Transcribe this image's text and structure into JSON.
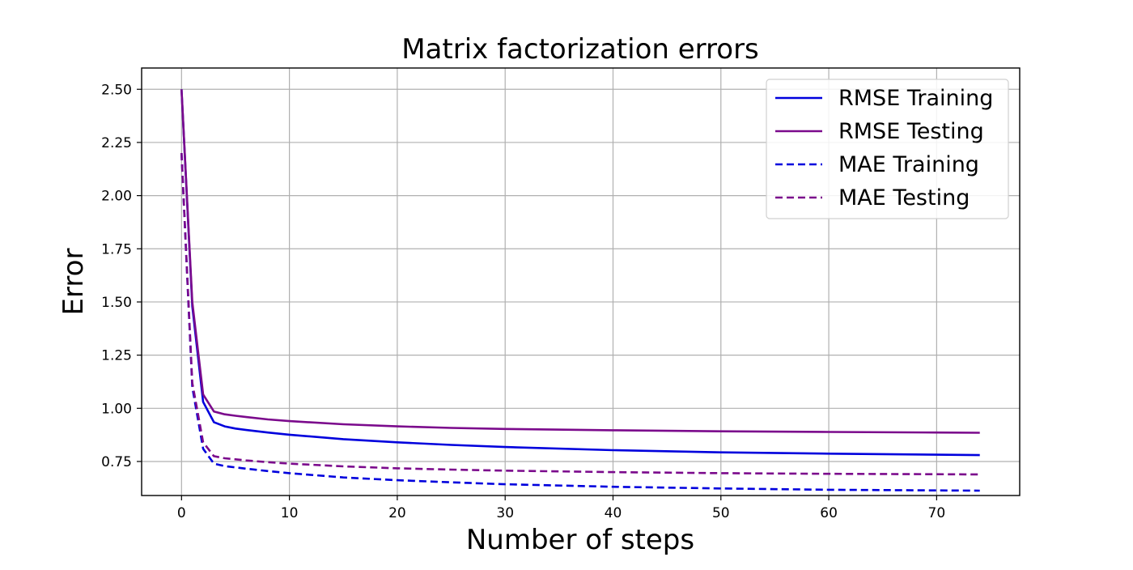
{
  "chart_data": {
    "type": "line",
    "title": "Matrix factorization errors",
    "xlabel": "Number of steps",
    "ylabel": "Error",
    "xlim": [
      -3.7,
      77.7
    ],
    "ylim": [
      0.59,
      2.6
    ],
    "xticks": [
      0,
      10,
      20,
      30,
      40,
      50,
      60,
      70
    ],
    "xtick_labels": [
      "0",
      "10",
      "20",
      "30",
      "40",
      "50",
      "60",
      "70"
    ],
    "yticks": [
      0.75,
      1.0,
      1.25,
      1.5,
      1.75,
      2.0,
      2.25,
      2.5
    ],
    "ytick_labels": [
      "0.75",
      "1.00",
      "1.25",
      "1.50",
      "1.75",
      "2.00",
      "2.25",
      "2.50"
    ],
    "grid": true,
    "legend_position": "upper-right",
    "series": [
      {
        "name": "RMSE Training",
        "color": "#0000dd",
        "dash": "solid",
        "x": [
          0,
          1,
          2,
          3,
          4,
          5,
          6,
          8,
          10,
          15,
          20,
          25,
          30,
          40,
          50,
          60,
          70,
          74
        ],
        "y": [
          2.5,
          1.48,
          1.03,
          0.935,
          0.915,
          0.905,
          0.898,
          0.886,
          0.876,
          0.855,
          0.84,
          0.828,
          0.818,
          0.803,
          0.793,
          0.787,
          0.782,
          0.78
        ]
      },
      {
        "name": "RMSE Testing",
        "color": "#7b0a8c",
        "dash": "solid",
        "x": [
          0,
          1,
          2,
          3,
          4,
          5,
          6,
          8,
          10,
          15,
          20,
          25,
          30,
          40,
          50,
          60,
          70,
          74
        ],
        "y": [
          2.5,
          1.5,
          1.065,
          0.985,
          0.972,
          0.965,
          0.959,
          0.948,
          0.94,
          0.925,
          0.915,
          0.908,
          0.903,
          0.897,
          0.892,
          0.889,
          0.886,
          0.885
        ]
      },
      {
        "name": "MAE Training",
        "color": "#0000dd",
        "dash": "dashed",
        "x": [
          0,
          1,
          2,
          3,
          4,
          5,
          6,
          8,
          10,
          15,
          20,
          25,
          30,
          40,
          50,
          60,
          70,
          74
        ],
        "y": [
          2.2,
          1.1,
          0.81,
          0.74,
          0.728,
          0.722,
          0.716,
          0.705,
          0.695,
          0.675,
          0.662,
          0.652,
          0.643,
          0.631,
          0.623,
          0.617,
          0.614,
          0.613
        ]
      },
      {
        "name": "MAE Testing",
        "color": "#7b0a8c",
        "dash": "dashed",
        "x": [
          0,
          1,
          2,
          3,
          4,
          5,
          6,
          8,
          10,
          15,
          20,
          25,
          30,
          40,
          50,
          60,
          70,
          74
        ],
        "y": [
          2.2,
          1.12,
          0.84,
          0.775,
          0.765,
          0.76,
          0.755,
          0.747,
          0.74,
          0.727,
          0.718,
          0.712,
          0.707,
          0.7,
          0.695,
          0.692,
          0.69,
          0.689
        ]
      }
    ]
  }
}
